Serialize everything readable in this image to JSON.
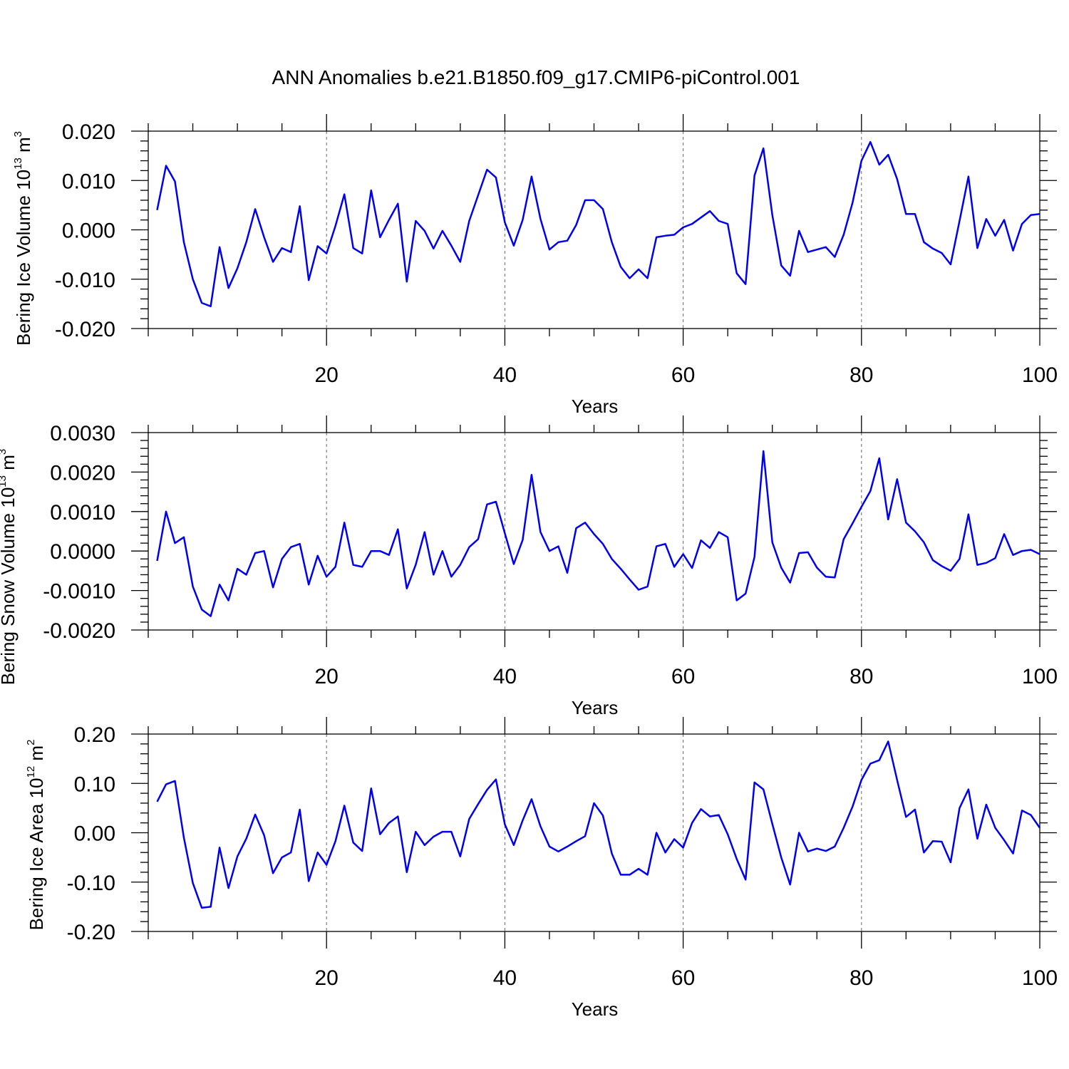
{
  "title": "ANN Anomalies b.e21.B1850.f09_g17.CMIP6-piControl.001",
  "line_color": "#0000ee",
  "chart_data": [
    {
      "type": "line",
      "ylabel_main": "Bering Ice Volume 10",
      "ylabel_exp": "13",
      "ylabel_unit": " m",
      "ylabel_unit_exp": "3",
      "xlabel": "Years",
      "xlim": [
        0,
        100
      ],
      "ylim": [
        -0.02,
        0.02
      ],
      "xticks": [
        20,
        40,
        60,
        80,
        100
      ],
      "yticks": [
        -0.02,
        -0.01,
        0.0,
        0.01,
        0.02
      ],
      "ytick_labels": [
        "-0.020",
        "-0.010",
        "0.000",
        "0.010",
        "0.020"
      ],
      "grid": "dashed vertical at major x ticks",
      "values": [
        0.004,
        0.013,
        0.0098,
        -0.0025,
        -0.01,
        -0.0148,
        -0.0155,
        -0.0035,
        -0.0118,
        -0.0078,
        -0.0025,
        0.0042,
        -0.0015,
        -0.0065,
        -0.0037,
        -0.0045,
        0.0048,
        -0.0102,
        -0.0033,
        -0.0048,
        0.0008,
        0.0072,
        -0.0037,
        -0.0048,
        0.008,
        -0.0015,
        0.002,
        0.0053,
        -0.0105,
        0.0018,
        -0.0002,
        -0.0038,
        -0.0002,
        -0.0032,
        -0.0065,
        0.0018,
        0.007,
        0.0122,
        0.0106,
        0.0015,
        -0.0032,
        0.002,
        0.0108,
        0.0022,
        -0.004,
        -0.0025,
        -0.0022,
        0.001,
        0.006,
        0.006,
        0.0042,
        -0.0025,
        -0.0075,
        -0.0098,
        -0.008,
        -0.0098,
        -0.0015,
        -0.0012,
        -0.001,
        0.0005,
        0.0012,
        0.0025,
        0.0038,
        0.0018,
        0.0012,
        -0.0088,
        -0.011,
        0.011,
        0.0165,
        0.003,
        -0.0072,
        -0.0093,
        -0.0002,
        -0.0045,
        -0.004,
        -0.0035,
        -0.0055,
        -0.001,
        0.0055,
        0.014,
        0.0178,
        0.0132,
        0.0152,
        0.0103,
        0.0032,
        0.0032,
        -0.0025,
        -0.0038,
        -0.0047,
        -0.007,
        0.0018,
        0.0108,
        -0.0037,
        0.0022,
        -0.0012,
        0.002,
        -0.0042,
        0.0012,
        0.003,
        0.0032
      ]
    },
    {
      "type": "line",
      "ylabel_main": "Bering Snow Volume 10",
      "ylabel_exp": "13",
      "ylabel_unit": " m",
      "ylabel_unit_exp": "3",
      "xlabel": "Years",
      "xlim": [
        0,
        100
      ],
      "ylim": [
        -0.002,
        0.003
      ],
      "xticks": [
        20,
        40,
        60,
        80,
        100
      ],
      "yticks": [
        -0.002,
        -0.001,
        0.0,
        0.001,
        0.002,
        0.003
      ],
      "ytick_labels": [
        "-0.0020",
        "-0.0010",
        "0.0000",
        "0.0010",
        "0.0020",
        "0.0030"
      ],
      "grid": "dashed vertical at major x ticks",
      "values": [
        -0.00025,
        0.001,
        0.0002,
        0.00035,
        -0.0009,
        -0.00148,
        -0.00165,
        -0.00085,
        -0.00125,
        -0.00045,
        -0.0006,
        -5e-05,
        0.0,
        -0.00092,
        -0.0002,
        0.0001,
        0.00018,
        -0.00085,
        -0.00012,
        -0.00065,
        -0.0004,
        0.00072,
        -0.00035,
        -0.0004,
        0.0,
        0.0,
        -0.0001,
        0.00055,
        -0.00095,
        -0.00035,
        0.00048,
        -0.0006,
        0.0,
        -0.00065,
        -0.00035,
        0.0001,
        0.0003,
        0.00118,
        0.00125,
        0.00045,
        -0.00033,
        0.00028,
        0.00193,
        0.00048,
        0.0,
        0.00012,
        -0.00055,
        0.00058,
        0.00072,
        0.00043,
        0.00018,
        -0.0002,
        -0.00045,
        -0.00072,
        -0.00098,
        -0.0009,
        0.00012,
        0.00018,
        -0.0004,
        -8e-05,
        -0.00043,
        0.00027,
        8e-05,
        0.00048,
        0.00035,
        -0.00125,
        -0.00108,
        -0.00015,
        0.00253,
        0.00022,
        -0.00042,
        -0.0008,
        -5e-05,
        -3e-05,
        -0.00042,
        -0.00065,
        -0.00067,
        0.0003,
        0.0007,
        0.00112,
        0.00152,
        0.00235,
        0.0008,
        0.00182,
        0.00072,
        0.0005,
        0.00022,
        -0.00023,
        -0.00038,
        -0.0005,
        -0.0002,
        0.00093,
        -0.00035,
        -0.0003,
        -0.00018,
        0.00043,
        -0.0001,
        0.0,
        3e-05,
        -8e-05
      ]
    },
    {
      "type": "line",
      "ylabel_main": "Bering Ice Area 10",
      "ylabel_exp": "12",
      "ylabel_unit": " m",
      "ylabel_unit_exp": "2",
      "xlabel": "Years",
      "xlim": [
        0,
        100
      ],
      "ylim": [
        -0.2,
        0.2
      ],
      "xticks": [
        20,
        40,
        60,
        80,
        100
      ],
      "yticks": [
        -0.2,
        -0.1,
        0.0,
        0.1,
        0.2
      ],
      "ytick_labels": [
        "-0.20",
        "-0.10",
        "0.00",
        "0.10",
        "0.20"
      ],
      "grid": "dashed vertical at major x ticks",
      "values": [
        0.063,
        0.098,
        0.105,
        -0.01,
        -0.102,
        -0.152,
        -0.15,
        -0.03,
        -0.112,
        -0.048,
        -0.012,
        0.037,
        -0.005,
        -0.082,
        -0.05,
        -0.04,
        0.047,
        -0.098,
        -0.04,
        -0.065,
        -0.017,
        0.055,
        -0.02,
        -0.037,
        0.09,
        -0.003,
        0.02,
        0.033,
        -0.08,
        0.002,
        -0.025,
        -0.008,
        0.002,
        0.002,
        -0.048,
        0.028,
        0.058,
        0.087,
        0.108,
        0.017,
        -0.025,
        0.025,
        0.068,
        0.013,
        -0.028,
        -0.038,
        -0.028,
        -0.017,
        -0.007,
        0.06,
        0.035,
        -0.042,
        -0.085,
        -0.085,
        -0.073,
        -0.085,
        0.0,
        -0.04,
        -0.013,
        -0.03,
        0.02,
        0.048,
        0.033,
        0.036,
        -0.003,
        -0.053,
        -0.095,
        0.102,
        0.088,
        0.018,
        -0.05,
        -0.105,
        0.0,
        -0.038,
        -0.032,
        -0.037,
        -0.028,
        0.01,
        0.053,
        0.107,
        0.14,
        0.147,
        0.185,
        0.107,
        0.032,
        0.047,
        -0.04,
        -0.017,
        -0.018,
        -0.06,
        0.05,
        0.088,
        -0.012,
        0.057,
        0.01,
        -0.015,
        -0.042,
        0.045,
        0.036,
        0.01
      ]
    }
  ]
}
